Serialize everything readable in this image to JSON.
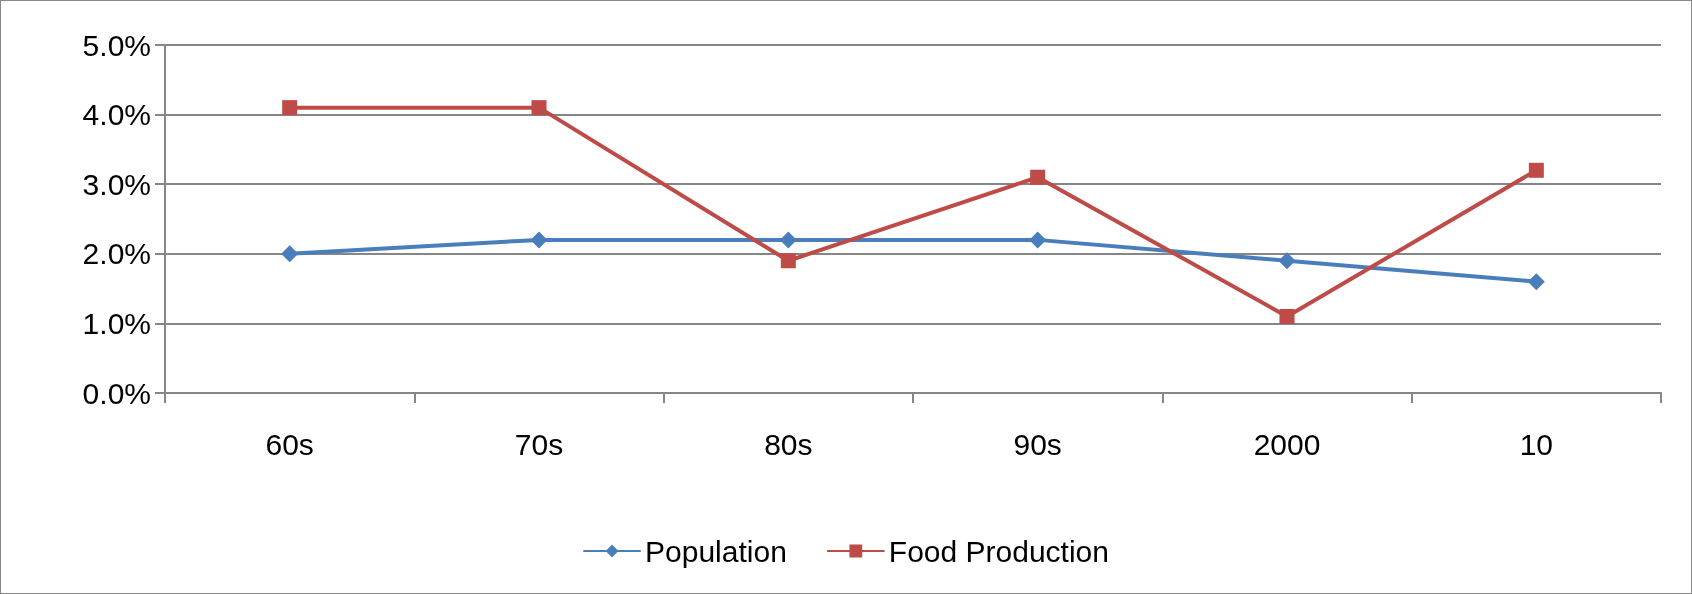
{
  "chart_data": {
    "type": "line",
    "categories": [
      "60s",
      "70s",
      "80s",
      "90s",
      "2000",
      "10"
    ],
    "series": [
      {
        "name": "Population",
        "color": "#4a7ebb",
        "marker": "diamond",
        "values": [
          2.0,
          2.2,
          2.2,
          2.2,
          1.9,
          1.6
        ]
      },
      {
        "name": "Food Production",
        "color": "#be4b48",
        "marker": "square",
        "values": [
          4.1,
          4.1,
          1.9,
          3.1,
          1.1,
          3.2
        ]
      }
    ],
    "ylim": [
      0,
      5
    ],
    "yticks": [
      {
        "value": 0,
        "label": "0.0%"
      },
      {
        "value": 1,
        "label": "1.0%"
      },
      {
        "value": 2,
        "label": "2.0%"
      },
      {
        "value": 3,
        "label": "3.0%"
      },
      {
        "value": 4,
        "label": "4.0%"
      },
      {
        "value": 5,
        "label": "5.0%"
      }
    ],
    "grid": "y",
    "legend": "bottom",
    "line_style": "solid"
  }
}
